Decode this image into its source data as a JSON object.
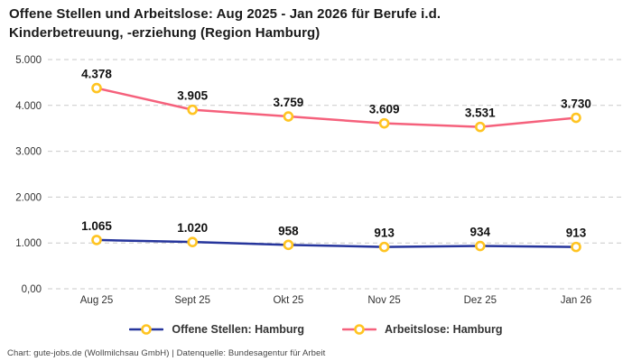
{
  "title": "Offene Stellen und Arbeitslose: Aug 2025 - Jan 2026 für Berufe i.d. Kinderbetreuung, -erziehung (Region Hamburg)",
  "footer": "Chart: gute-jobs.de (Wollmilchsau GmbH) | Datenquelle: Bundesagentur für Arbeit",
  "colors": {
    "marker_ring": "#FFC421",
    "marker_fill": "#FFFFFF",
    "grid": "#C9C9C9",
    "title_text": "#1A1A1A",
    "axis_text": "#333333",
    "data_label_text": "#111111"
  },
  "chart_data": {
    "type": "line",
    "title": "Offene Stellen und Arbeitslose: Aug 2025 - Jan 2026 für Berufe i.d. Kinderbetreuung, -erziehung (Region Hamburg)",
    "categories": [
      "Aug 25",
      "Sept 25",
      "Okt 25",
      "Nov 25",
      "Dez 25",
      "Jan 26"
    ],
    "series": [
      {
        "name": "Offene Stellen: Hamburg",
        "color": "#26359C",
        "values": [
          1065,
          1020,
          958,
          913,
          934,
          913
        ],
        "value_labels": [
          "1.065",
          "1.020",
          "958",
          "913",
          "934",
          "913"
        ]
      },
      {
        "name": "Arbeitslose: Hamburg",
        "color": "#F5617C",
        "values": [
          4378,
          3905,
          3759,
          3609,
          3531,
          3730
        ],
        "value_labels": [
          "4.378",
          "3.905",
          "3.759",
          "3.609",
          "3.531",
          "3.730"
        ]
      }
    ],
    "xlabel": "",
    "ylabel": "",
    "ylim": [
      0,
      5000
    ],
    "yticks": {
      "values": [
        0,
        1000,
        2000,
        3000,
        4000,
        5000
      ],
      "labels": [
        "0,00",
        "1.000",
        "2.000",
        "3.000",
        "4.000",
        "5.000"
      ]
    },
    "grid": "horizontal-dashed",
    "legend_position": "bottom",
    "marker": "gold-ring-circle"
  }
}
